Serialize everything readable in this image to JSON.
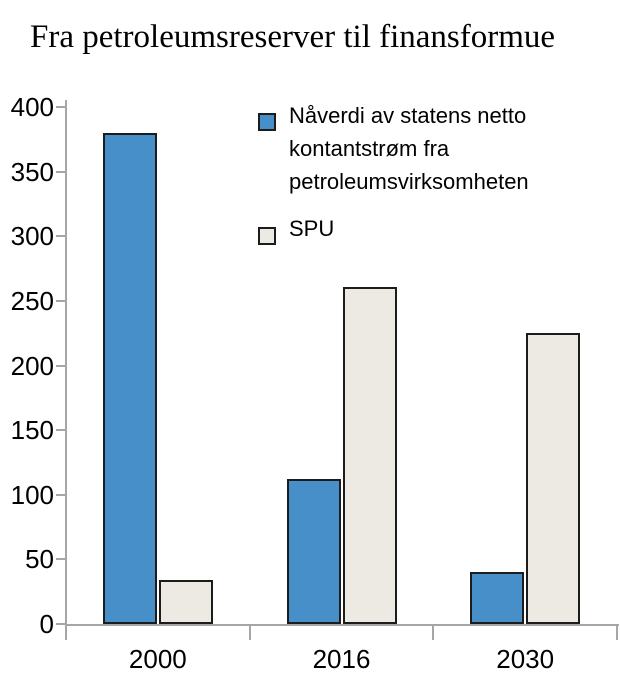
{
  "figure": {
    "title": "Fra petroleumsreserver til finansformue"
  },
  "chart_data": {
    "type": "bar",
    "title": "Fra petroleumsreserver til finansformue",
    "categories": [
      "2000",
      "2016",
      "2030"
    ],
    "series": [
      {
        "name": "Nåverdi av statens netto kontantstrøm fra petroleumsvirksomheten",
        "color": "#478FC8",
        "values": [
          380,
          112,
          40
        ]
      },
      {
        "name": "SPU",
        "color": "#EDEAE4",
        "values": [
          34,
          261,
          225
        ]
      }
    ],
    "ylim": [
      0,
      400
    ],
    "yticks": [
      0,
      50,
      100,
      150,
      200,
      250,
      300,
      350,
      400
    ],
    "xlabel": "",
    "ylabel": "",
    "grid": false,
    "legend_position": "upper-right-inside",
    "bar_border_color": "#1c1c1c",
    "axis_color": "#a6a6a6",
    "text_color": "#000000",
    "background": "#ffffff"
  }
}
